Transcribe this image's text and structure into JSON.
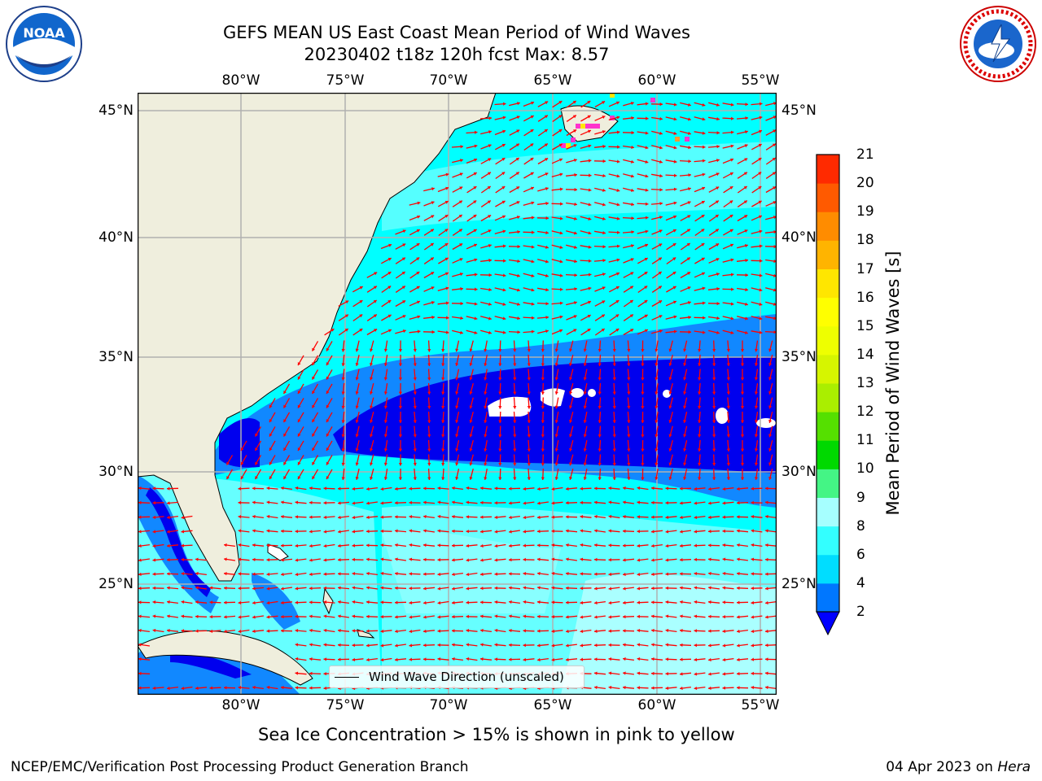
{
  "header": {
    "title_line1": "GEFS MEAN US East Coast Mean Period of Wind Waves",
    "title_line2": "20230402 t18z 120h fcst   Max: 8.57"
  },
  "logos": {
    "left": {
      "icon": "noaa-logo",
      "text": "NOAA"
    },
    "right": {
      "icon": "nws-logo",
      "text": "NATIONAL WEATHER SERVICE"
    }
  },
  "map": {
    "lon_labels": [
      "80°W",
      "75°W",
      "70°W",
      "65°W",
      "60°W",
      "55°W"
    ],
    "lat_labels": [
      "45°N",
      "40°N",
      "35°N",
      "30°N",
      "25°N"
    ],
    "legend_label": "Wind Wave Direction (unscaled)",
    "arrow_color": "#ff0000",
    "land_color": "#efeedd",
    "ice_colors": [
      "#ff33cc",
      "#ffe600",
      "#ff9933"
    ]
  },
  "colorbar": {
    "label": "Mean Period of Wind Waves [s]",
    "ticks": [
      "2",
      "4",
      "6",
      "8",
      "9",
      "10",
      "11",
      "12",
      "13",
      "14",
      "15",
      "16",
      "17",
      "18",
      "19",
      "20",
      "21"
    ],
    "colors": [
      "#0077ff",
      "#00ddff",
      "#33ffff",
      "#a6ffff",
      "#44f585",
      "#00d900",
      "#55e000",
      "#aaee00",
      "#d6f500",
      "#eeff00",
      "#ffff00",
      "#ffe600",
      "#ffb400",
      "#ff8c00",
      "#ff5a00",
      "#ff2a00",
      "#ff0000"
    ],
    "under_color": "#0000ff"
  },
  "notes": {
    "sea_ice": "Sea Ice Concentration > 15% is shown in pink to yellow"
  },
  "footer": {
    "left": "NCEP/EMC/Verification Post Processing Product Generation Branch",
    "date": "04 Apr 2023 on ",
    "host": "Hera"
  }
}
